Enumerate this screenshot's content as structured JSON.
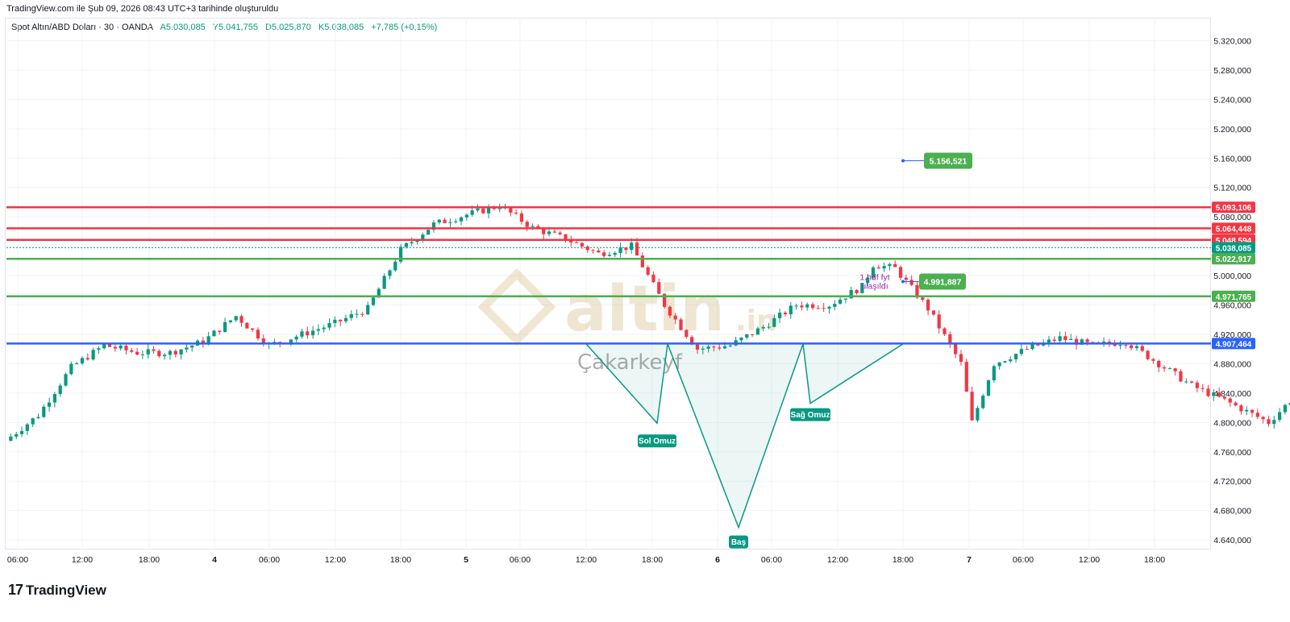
{
  "header": {
    "note": "TradingView.com ile Şub 09, 2026 08:43 UTC+3 tarihinde oluşturuldu",
    "symbol": "Spot Altın/ABD Doları · 30 · OANDA",
    "open": "A5.030,085",
    "high": "Y5.041,755",
    "low": "D5.025,870",
    "close": "K5.038,085",
    "change": "+7,785 (+0,15%)"
  },
  "brand": {
    "logo": "17",
    "name": "TradingView"
  },
  "watermark": {
    "main": "altin",
    "suffix": ".in",
    "sub": "Çakarkeyf"
  },
  "colors": {
    "up": "#089981",
    "down": "#f23645",
    "resistance": "#f23645",
    "support": "#4caf50",
    "pivot": "#2962ff",
    "pattern": "#089981",
    "note": "#9c27b0",
    "grid": "#f0f3fa"
  },
  "chart_data": {
    "type": "candlestick",
    "title": "",
    "ylim": [
      4620,
      5340
    ],
    "y_ticks": [
      "5.320,000",
      "5.280,000",
      "5.240,000",
      "5.200,000",
      "5.160,000",
      "5.120,000",
      "5.080,000",
      "5.040,000",
      "5.000,000",
      "4.960,000",
      "4.920,000",
      "4.880,000",
      "4.840,000",
      "4.800,000",
      "4.760,000",
      "4.720,000",
      "4.680,000",
      "4.640,000"
    ],
    "x_ticks": [
      "06:00",
      "12:00",
      "18:00",
      "4",
      "06:00",
      "12:00",
      "18:00",
      "5",
      "06:00",
      "12:00",
      "18:00",
      "6",
      "06:00",
      "12:00",
      "18:00",
      "7",
      "06:00",
      "12:00",
      "18:00"
    ],
    "horizontal_lines": [
      {
        "value": 5093.106,
        "label": "5.093,106",
        "kind": "resistance"
      },
      {
        "value": 5064.448,
        "label": "5.064,448",
        "kind": "resistance"
      },
      {
        "value": 5048.594,
        "label": "5.048,594",
        "kind": "resistance"
      },
      {
        "value": 5022.917,
        "label": "5.022,917",
        "kind": "support"
      },
      {
        "value": 4971.765,
        "label": "4.971,765",
        "kind": "support"
      },
      {
        "value": 4907.464,
        "label": "4.907,464",
        "kind": "pivot"
      }
    ],
    "last_price": {
      "value": 5038.085,
      "label": "5.038,085"
    },
    "targets": [
      {
        "value": 5156.521,
        "label": "5.156,521"
      },
      {
        "value": 4991.887,
        "label": "4.991,887",
        "note1": "1.hdf fyt",
        "note2": "ulaşıldı"
      }
    ],
    "pattern_labels": [
      "Sol Omuz",
      "Baş",
      "Sağ Omuz"
    ],
    "key_points": [
      {
        "x": "12:00 (5)",
        "y": 4907
      },
      {
        "x": "Sol Omuz",
        "y": 4799
      },
      {
        "x": "19:00 (5)",
        "y": 4907
      },
      {
        "x": "Baş",
        "y": 4657
      },
      {
        "x": "08:00 (6)",
        "y": 4907
      },
      {
        "x": "Sağ Omuz",
        "y": 4826
      },
      {
        "x": "18:00 (6)",
        "y": 4907
      }
    ]
  }
}
